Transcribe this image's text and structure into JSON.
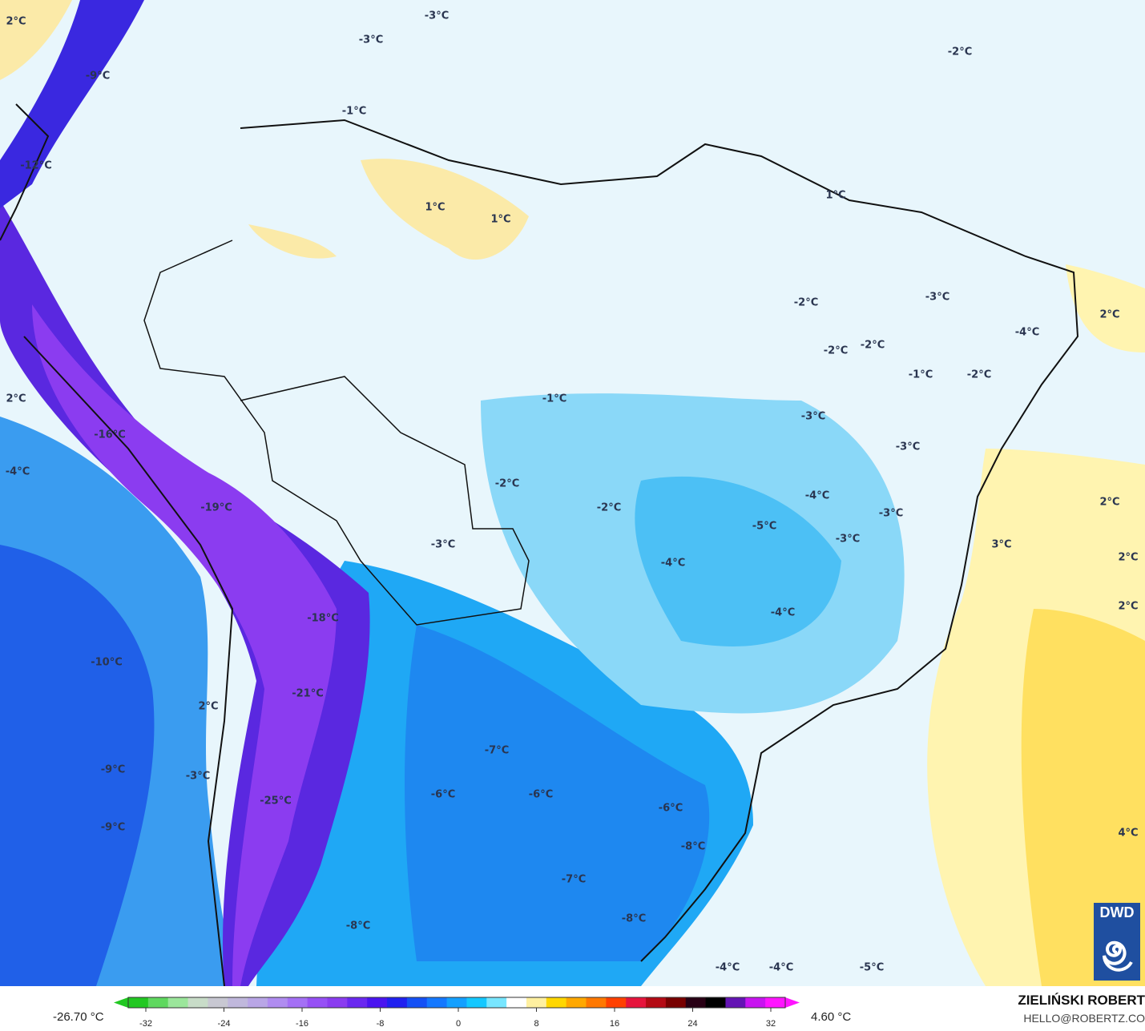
{
  "map": {
    "labels": [
      "2°C",
      "-9°C",
      "-3°C",
      "-3°C",
      "-1°C",
      "-2°C",
      "-12°C",
      "1°C",
      "1°C",
      "1°C",
      "-2°C",
      "-3°C",
      "2°C",
      "-4°C",
      "-2°C",
      "-2°C",
      "-1°C",
      "-2°C",
      "-1°C",
      "2°C",
      "-16°C",
      "-3°C",
      "-3°C",
      "-4°C",
      "-2°C",
      "-19°C",
      "-2°C",
      "-3°C",
      "-5°C",
      "-3°C",
      "-3°C",
      "2°C",
      "3°C",
      "2°C",
      "-4°C",
      "-4°C",
      "2°C",
      "-18°C",
      "-10°C",
      "-21°C",
      "2°C",
      "-4°C",
      "-7°C",
      "-9°C",
      "-3°C",
      "-6°C",
      "-6°C",
      "-6°C",
      "-25°C",
      "-9°C",
      "-8°C",
      "4°C",
      "-7°C",
      "-8°C",
      "-8°C",
      "-4°C",
      "-4°C",
      "-5°C"
    ]
  },
  "colorbar": {
    "min_readout": "-26.70 °C",
    "max_readout": "4.60 °C",
    "ticks": [
      "-32",
      "-24",
      "-16",
      "-8",
      "0",
      "8",
      "16",
      "24",
      "32"
    ],
    "range": [
      -32,
      32
    ],
    "colors": [
      "#22c822",
      "#5fd85f",
      "#9be69b",
      "#c8dcc8",
      "#c8c8d2",
      "#c0b8dc",
      "#b9a6e6",
      "#b08cf0",
      "#a470f5",
      "#9650f5",
      "#8a3cf0",
      "#6a28f0",
      "#4a14f0",
      "#2020f0",
      "#1450f5",
      "#1478ff",
      "#14a0ff",
      "#14c8ff",
      "#78e6ff",
      "#ffffff",
      "#fff0a0",
      "#ffd700",
      "#ffa800",
      "#ff7800",
      "#ff4000",
      "#e6143c",
      "#b40a14",
      "#780000",
      "#280014",
      "#000000",
      "#6414b4",
      "#c814f0",
      "#ff14ff"
    ]
  },
  "credits": {
    "author": "ZIELIŃSKI ROBERT",
    "email": "HELLO@ROBERTZ.CO",
    "logo_text": "DWD"
  }
}
